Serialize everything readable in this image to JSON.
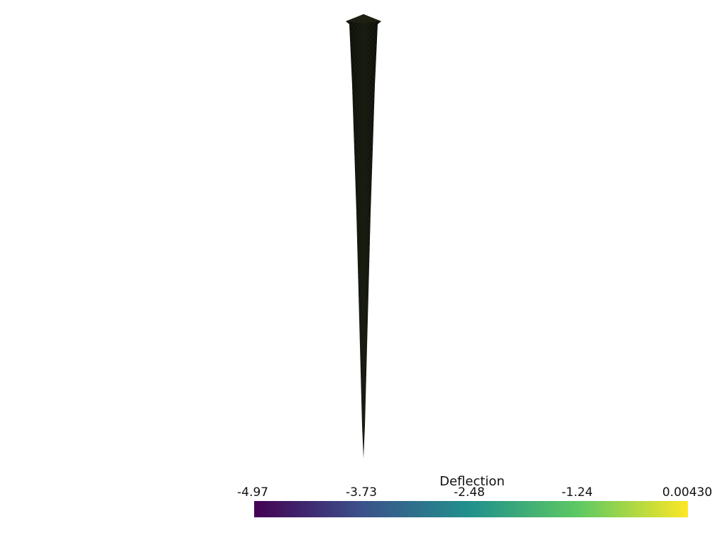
{
  "scalar_bar": {
    "title": "Deflection",
    "tick_labels": [
      "-4.97",
      "-3.73",
      "-2.48",
      "-1.24",
      "0.00430"
    ],
    "colormap": "viridis",
    "range": [
      -4.97,
      0.0043
    ],
    "colors": [
      "#440154",
      "#3b528b",
      "#21918c",
      "#5ec962",
      "#fde725"
    ]
  },
  "render": {
    "background_color": "#ffffff",
    "mesh_color": "#0e1410"
  }
}
